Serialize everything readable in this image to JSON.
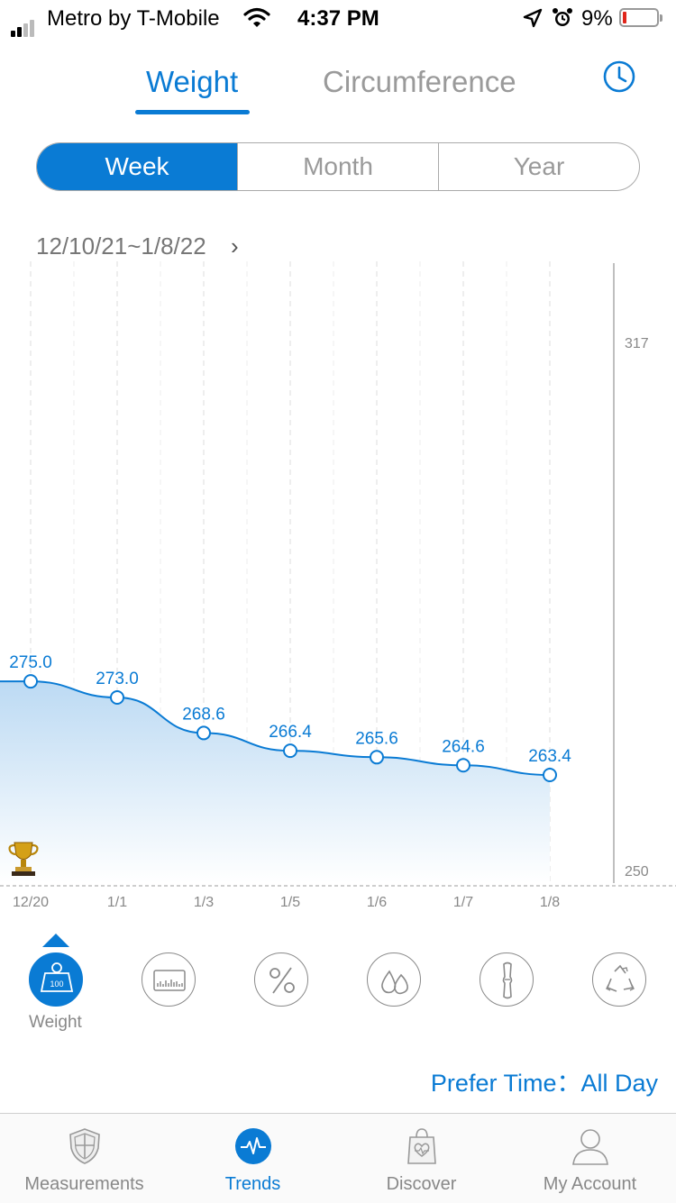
{
  "status_bar": {
    "carrier": "Metro by T-Mobile",
    "time": "4:37 PM",
    "battery_percent": "9%"
  },
  "tabs": {
    "weight": "Weight",
    "circumference": "Circumference"
  },
  "period": {
    "options": [
      "Week",
      "Month",
      "Year"
    ],
    "selected": "Week"
  },
  "date_range": "12/10/21~1/8/22",
  "chart_data": {
    "type": "area",
    "x": [
      "12/20",
      "1/1",
      "1/3",
      "1/5",
      "1/6",
      "1/7",
      "1/8"
    ],
    "values": [
      275.0,
      273.0,
      268.6,
      266.4,
      265.6,
      264.6,
      263.4
    ],
    "value_labels": [
      "275.0",
      "273.0",
      "268.6",
      "266.4",
      "265.6",
      "264.6",
      "263.4"
    ],
    "y_ticks": [
      "317",
      "250"
    ],
    "ylim": [
      250,
      317
    ],
    "color": "#0a7bd4",
    "fill_color": "#bcdaf3"
  },
  "metrics": {
    "selected_label": "Weight",
    "badge": "100",
    "icons": [
      "weight-icon",
      "bmi-bar-icon",
      "percent-icon",
      "water-icon",
      "bone-icon",
      "recycle-icon"
    ]
  },
  "prefer_time": {
    "label": "Prefer Time：",
    "value": "All Day"
  },
  "bottom_nav": {
    "measurements": "Measurements",
    "trends": "Trends",
    "discover": "Discover",
    "account": "My Account"
  },
  "colors": {
    "accent": "#0a7bd4",
    "inactive": "#9a9a9a"
  }
}
